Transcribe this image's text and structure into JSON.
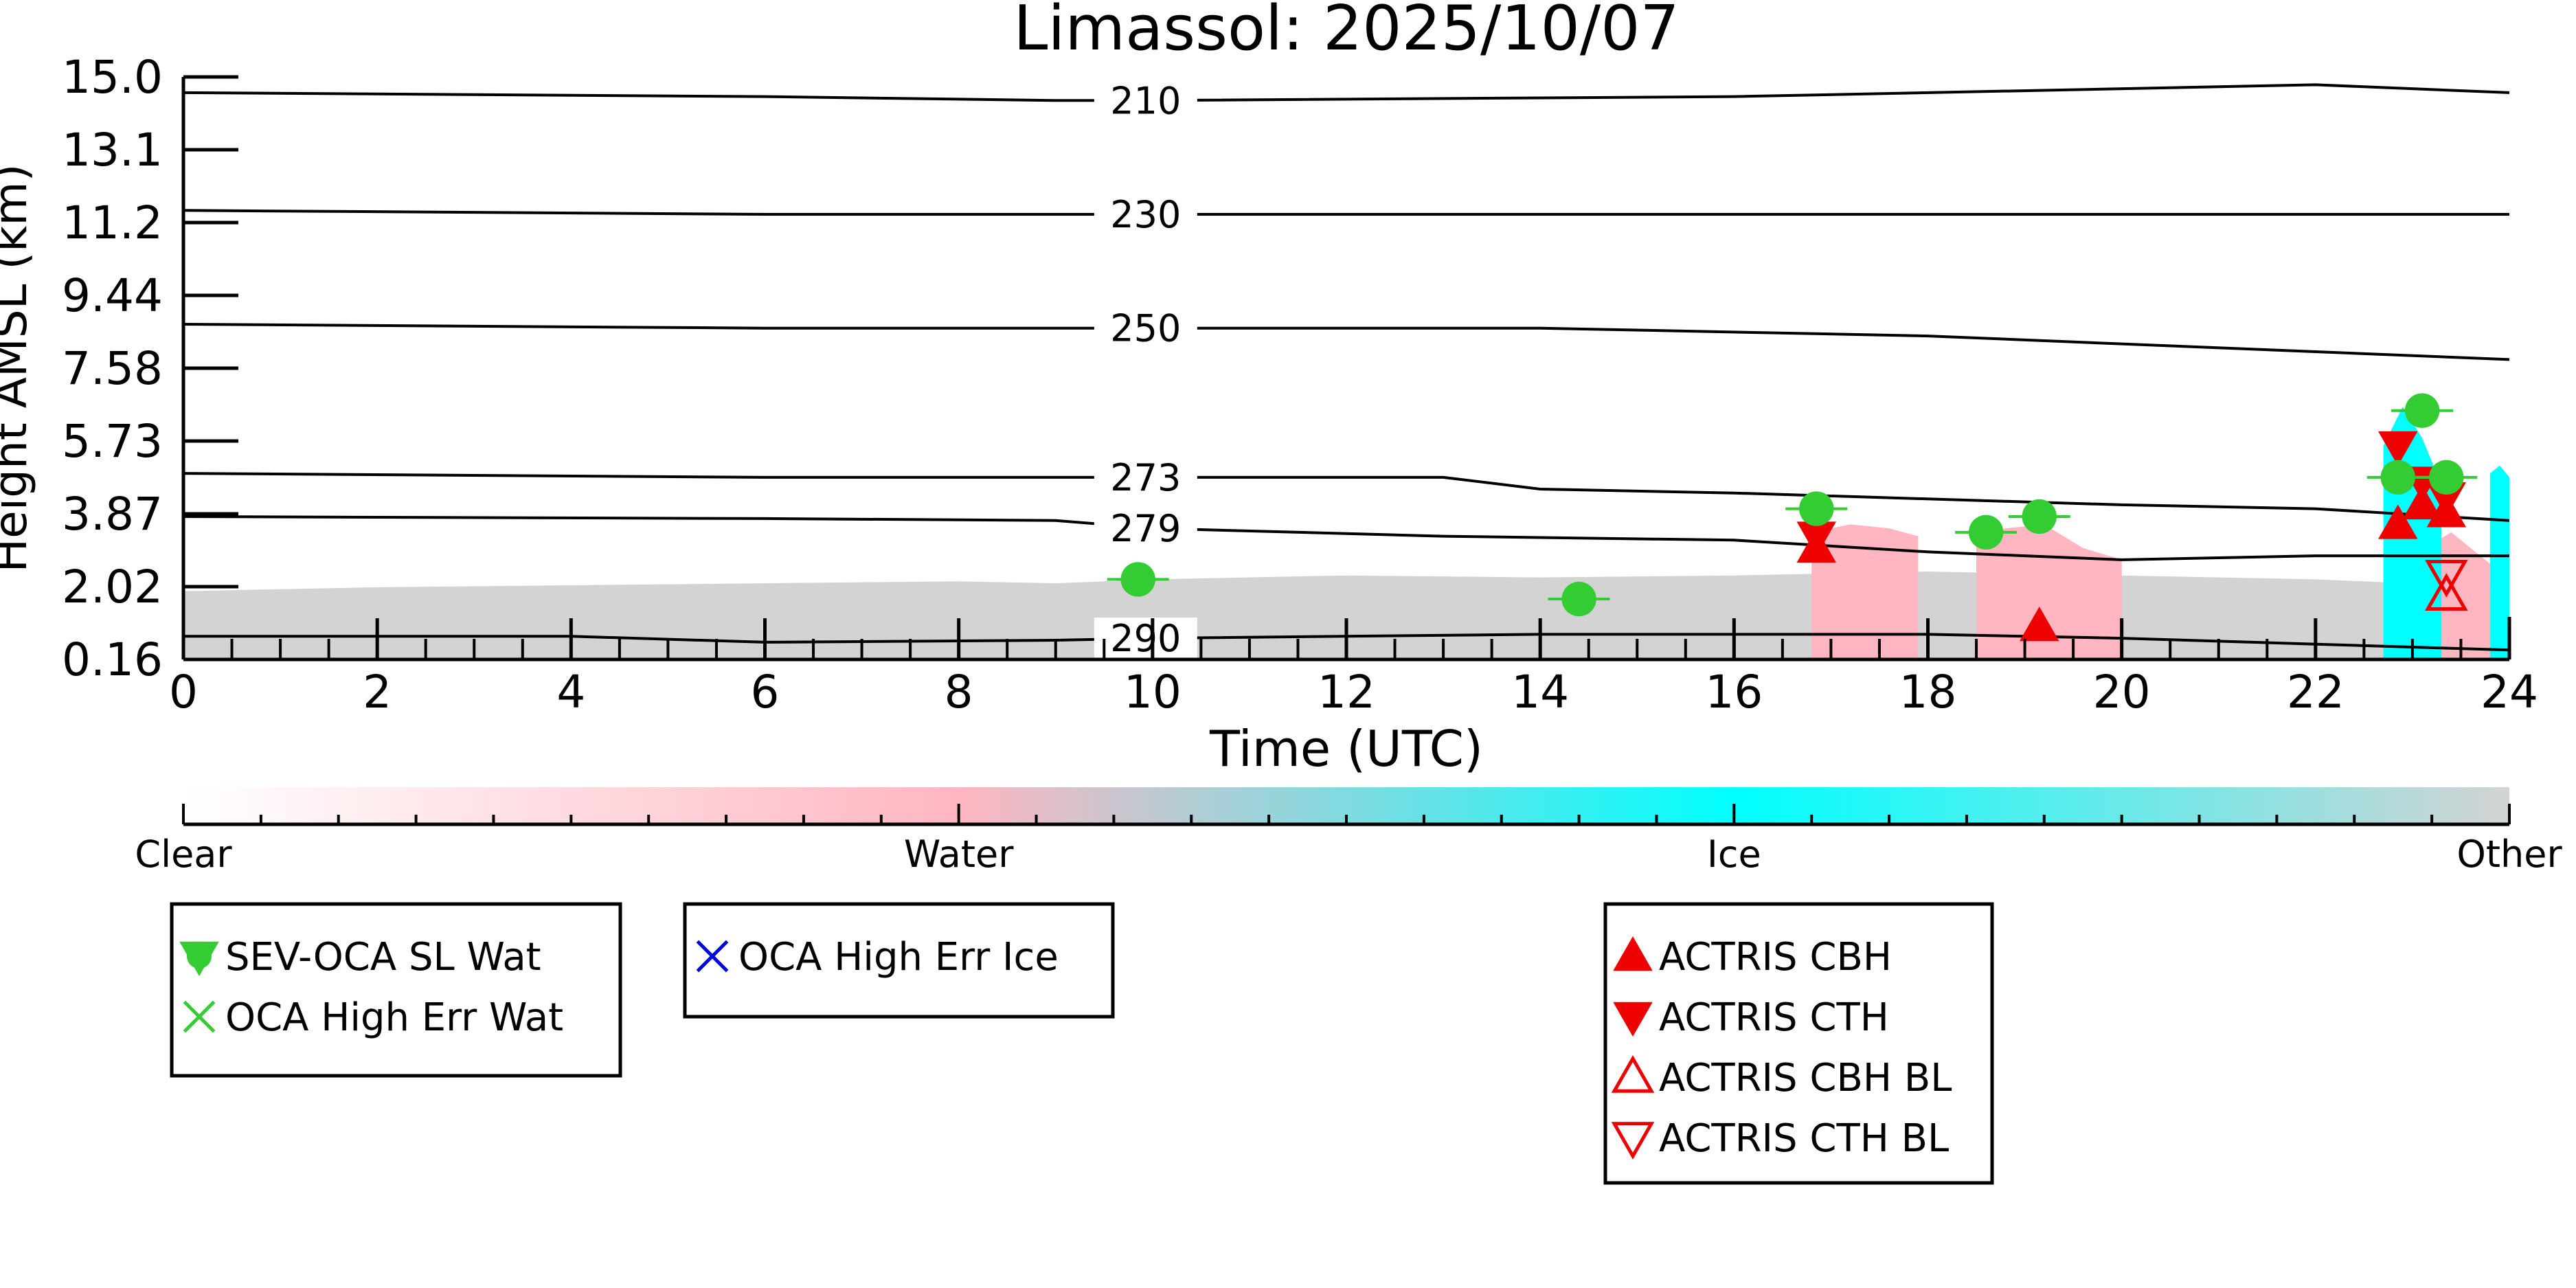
{
  "chart_data": {
    "type": "scatter",
    "title": "Limassol: 2025/10/07",
    "xlabel": "Time (UTC)",
    "ylabel": "Height AMSL (km)",
    "xlim": [
      0,
      24
    ],
    "ylim": [
      0.16,
      15.0
    ],
    "x_ticks": [
      "0",
      "2",
      "4",
      "6",
      "8",
      "10",
      "12",
      "14",
      "16",
      "18",
      "20",
      "22",
      "24"
    ],
    "y_ticks": [
      "0.16",
      "2.02",
      "3.87",
      "5.73",
      "7.58",
      "9.44",
      "11.2",
      "13.1",
      "15.0"
    ],
    "grid": false,
    "temperature_contours": [
      {
        "label": "210",
        "label_x": 10.0,
        "x": [
          0,
          6,
          9,
          10,
          16,
          18,
          22,
          24
        ],
        "y": [
          14.6,
          14.5,
          14.4,
          14.4,
          14.5,
          14.6,
          14.8,
          14.6
        ]
      },
      {
        "label": "230",
        "label_x": 10.0,
        "x": [
          0,
          6,
          9,
          10,
          16,
          20,
          24
        ],
        "y": [
          11.6,
          11.5,
          11.5,
          11.5,
          11.5,
          11.5,
          11.5
        ]
      },
      {
        "label": "250",
        "label_x": 10.0,
        "x": [
          0,
          6,
          9,
          10,
          14,
          18,
          20,
          24
        ],
        "y": [
          8.7,
          8.6,
          8.6,
          8.6,
          8.6,
          8.4,
          8.2,
          7.8
        ]
      },
      {
        "label": "273",
        "label_x": 10.0,
        "x": [
          0,
          6,
          9,
          10,
          13,
          14,
          16,
          20,
          22,
          24
        ],
        "y": [
          4.9,
          4.8,
          4.8,
          4.8,
          4.8,
          4.5,
          4.4,
          4.1,
          4.0,
          3.7
        ]
      },
      {
        "label": "279",
        "label_x": 10.0,
        "x": [
          0,
          6,
          9,
          10,
          13,
          16,
          18,
          19,
          20,
          22,
          24
        ],
        "y": [
          3.8,
          3.75,
          3.7,
          3.5,
          3.3,
          3.2,
          2.9,
          2.8,
          2.7,
          2.8,
          2.8
        ]
      },
      {
        "label": "290",
        "label_x": 10.0,
        "x": [
          0,
          4,
          6,
          9,
          10,
          14,
          18,
          20,
          22,
          24
        ],
        "y": [
          0.75,
          0.75,
          0.6,
          0.65,
          0.7,
          0.8,
          0.8,
          0.7,
          0.55,
          0.4
        ]
      }
    ],
    "phase_colorbar": {
      "labels": [
        "Clear",
        "Water",
        "Ice",
        "Other"
      ],
      "colors": [
        "#ffffff",
        "#ffb6c1",
        "#00ffff",
        "#d3d3d3"
      ]
    },
    "phase_regions": [
      {
        "phase": "Other",
        "color": "#d3d3d3",
        "x": [
          0,
          2,
          4,
          6,
          8,
          9,
          10,
          12,
          14,
          16,
          18,
          20,
          22,
          24
        ],
        "top": [
          1.9,
          2.0,
          2.05,
          2.1,
          2.15,
          2.1,
          2.2,
          2.3,
          2.25,
          2.3,
          2.4,
          2.3,
          2.2,
          2.0
        ]
      },
      {
        "phase": "Water",
        "color": "#ffb6c1",
        "x": [
          16.8,
          17.2,
          17.6,
          17.9
        ],
        "top": [
          3.4,
          3.6,
          3.5,
          3.3
        ]
      },
      {
        "phase": "Water",
        "color": "#ffb6c1",
        "x": [
          18.5,
          18.8,
          19.2,
          19.6,
          20.0
        ],
        "top": [
          3.2,
          3.5,
          3.6,
          3.0,
          2.7
        ]
      },
      {
        "phase": "Water",
        "color": "#ffb6c1",
        "x": [
          23.2,
          23.4,
          23.6,
          23.8
        ],
        "top": [
          3.1,
          3.4,
          3.0,
          2.6
        ]
      },
      {
        "phase": "Ice",
        "color": "#00ffff",
        "x": [
          22.7,
          22.9,
          23.1,
          23.3
        ],
        "top": [
          5.6,
          6.6,
          5.8,
          4.6
        ]
      },
      {
        "phase": "Ice",
        "color": "#00ffff",
        "x": [
          23.8,
          23.9,
          24.0
        ],
        "top": [
          4.9,
          5.1,
          4.8
        ]
      }
    ],
    "series": [
      {
        "name": "SEV-OCA SL Wat",
        "marker": "circle",
        "color": "#33cc33",
        "x": [
          9.85,
          14.4,
          16.85,
          18.6,
          19.15,
          22.85,
          23.1,
          23.35
        ],
        "y": [
          2.2,
          1.7,
          4.0,
          3.4,
          3.8,
          4.8,
          6.5,
          4.8
        ]
      },
      {
        "name": "OCA High Err Wat",
        "marker": "x",
        "color": "#33cc33",
        "x": [],
        "y": []
      },
      {
        "name": "OCA High Err Ice",
        "marker": "x",
        "color": "#0000dd",
        "x": [],
        "y": []
      },
      {
        "name": "ACTRIS CBH",
        "marker": "triangle-up",
        "color": "#ee0000",
        "x": [
          16.85,
          19.15,
          22.85,
          23.1,
          23.35
        ],
        "y": [
          3.0,
          1.0,
          3.6,
          4.1,
          3.9
        ]
      },
      {
        "name": "ACTRIS CTH",
        "marker": "triangle-down",
        "color": "#ee0000",
        "x": [
          16.85,
          22.85,
          23.1,
          23.35
        ],
        "y": [
          3.3,
          5.6,
          4.7,
          4.3
        ]
      },
      {
        "name": "ACTRIS CBH BL",
        "marker": "triangle-up-open",
        "color": "#ee0000",
        "x": [
          23.35
        ],
        "y": [
          1.8
        ]
      },
      {
        "name": "ACTRIS CTH BL",
        "marker": "triangle-down-open",
        "color": "#ee0000",
        "x": [
          23.35
        ],
        "y": [
          2.3
        ]
      }
    ],
    "legend_groups": [
      [
        "SEV-OCA SL Wat",
        "OCA High Err Wat"
      ],
      [
        "OCA High Err Ice"
      ],
      [
        "ACTRIS CBH",
        "ACTRIS CTH",
        "ACTRIS CBH BL",
        "ACTRIS CTH BL"
      ]
    ]
  }
}
